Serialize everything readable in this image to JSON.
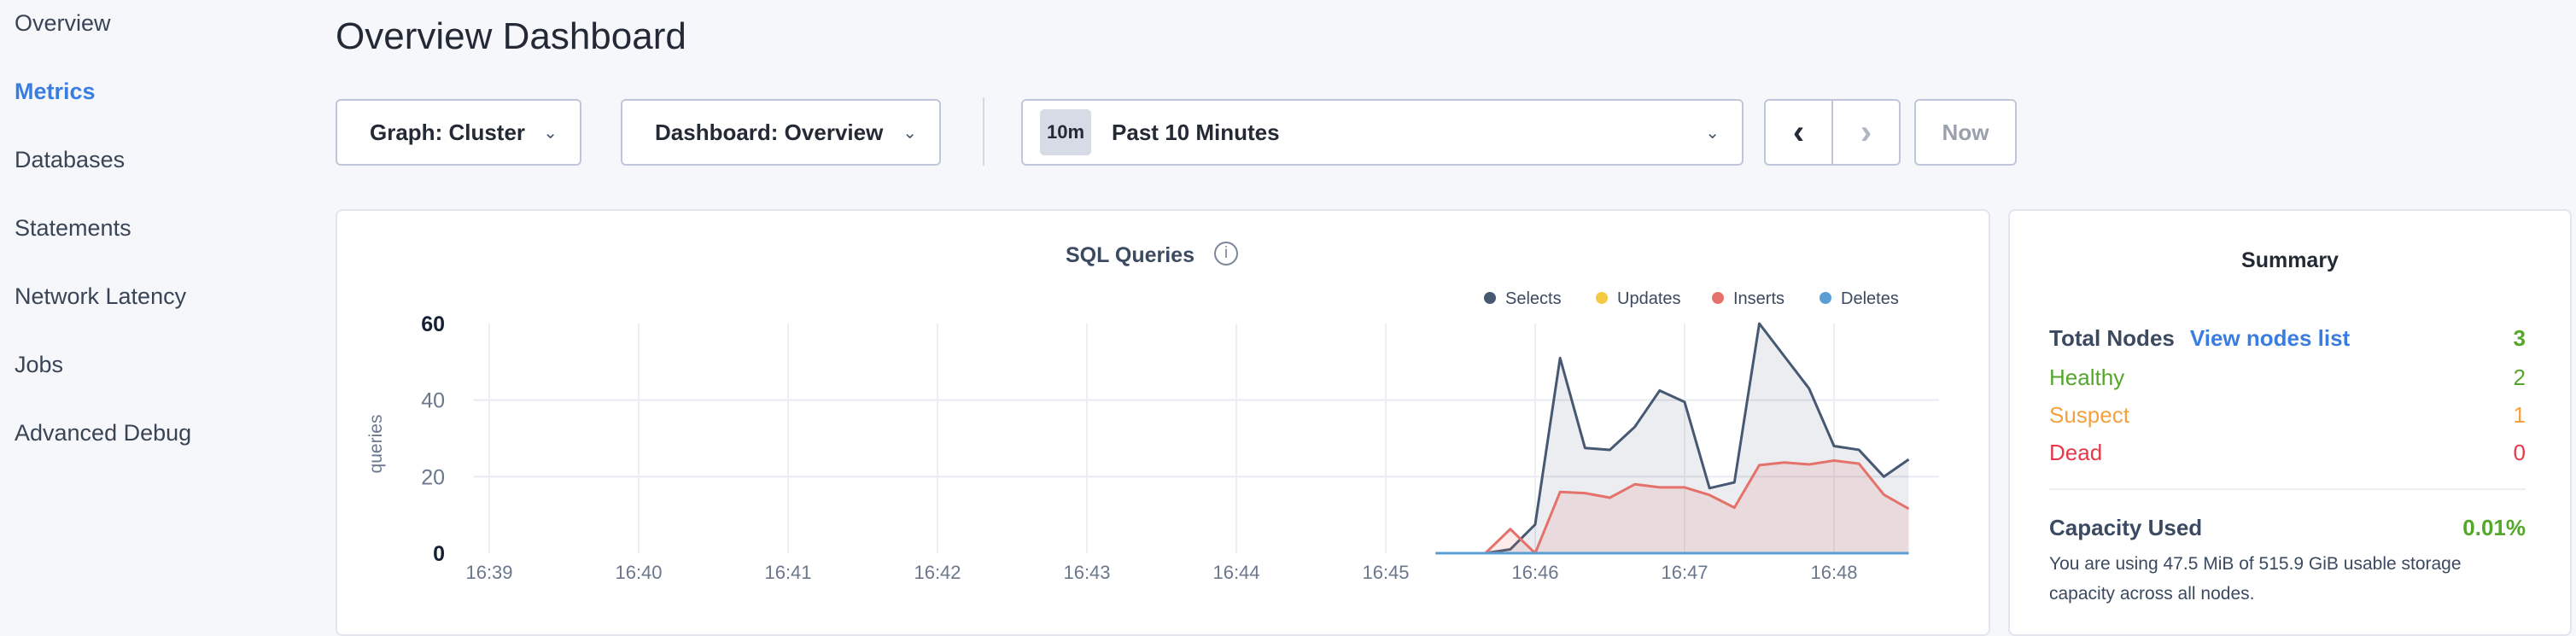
{
  "sidebar": {
    "items": [
      {
        "label": "Overview",
        "active": false
      },
      {
        "label": "Metrics",
        "active": true
      },
      {
        "label": "Databases",
        "active": false
      },
      {
        "label": "Statements",
        "active": false
      },
      {
        "label": "Network Latency",
        "active": false
      },
      {
        "label": "Jobs",
        "active": false
      },
      {
        "label": "Advanced Debug",
        "active": false
      }
    ]
  },
  "header": {
    "title": "Overview Dashboard"
  },
  "toolbar": {
    "graph_select": "Graph: Cluster",
    "dashboard_select": "Dashboard: Overview",
    "time_badge": "10m",
    "time_range": "Past 10 Minutes",
    "prev_icon": "chevron-left-icon",
    "next_icon": "chevron-right-icon",
    "now_label": "Now"
  },
  "summary": {
    "title": "Summary",
    "total_nodes_label": "Total Nodes",
    "view_nodes_link": "View nodes list",
    "total_nodes": "3",
    "healthy_label": "Healthy",
    "healthy": "2",
    "suspect_label": "Suspect",
    "suspect": "1",
    "dead_label": "Dead",
    "dead": "0",
    "capacity_label": "Capacity Used",
    "capacity_value": "0.01%",
    "capacity_text_1": "You are using 47.5 MiB of 515.9 GiB usable storage",
    "capacity_text_2": "capacity across all nodes.",
    "colors": {
      "healthy": "#54a72a",
      "suspect": "#f5a03f",
      "dead": "#e5394a",
      "link": "#3a7de1"
    }
  },
  "chart_data": {
    "type": "area",
    "title": "SQL Queries",
    "ylabel": "queries",
    "xlabel": "",
    "ylim": [
      0,
      60
    ],
    "yticks": [
      "0",
      "20",
      "40",
      "60"
    ],
    "xticks": [
      "16:39",
      "16:40",
      "16:41",
      "16:42",
      "16:43",
      "16:44",
      "16:45",
      "16:46",
      "16:47",
      "16:48"
    ],
    "grid": true,
    "legend_position": "top-right",
    "x": [
      "16:45:20",
      "16:45:30",
      "16:45:40",
      "16:45:50",
      "16:46:00",
      "16:46:10",
      "16:46:20",
      "16:46:30",
      "16:46:40",
      "16:46:50",
      "16:47:00",
      "16:47:10",
      "16:47:20",
      "16:47:30",
      "16:47:40",
      "16:47:50",
      "16:48:00",
      "16:48:10",
      "16:48:20",
      "16:48:30"
    ],
    "series": [
      {
        "name": "Selects",
        "color": "#475872",
        "values": [
          0,
          0,
          0,
          1,
          7.5,
          51,
          27.5,
          27,
          33,
          42.5,
          39.5,
          17,
          18.5,
          60,
          51.5,
          43,
          28,
          27,
          20,
          24.5
        ]
      },
      {
        "name": "Updates",
        "color": "#f5c940",
        "values": [
          0,
          0,
          0,
          0,
          0,
          0,
          0,
          0,
          0,
          0,
          0,
          0,
          0,
          0,
          0,
          0,
          0,
          0,
          0,
          0
        ]
      },
      {
        "name": "Inserts",
        "color": "#e5716b",
        "values": [
          0,
          0,
          0,
          6.3,
          0,
          16,
          15.7,
          14.5,
          18,
          17.2,
          17.2,
          15.2,
          11.9,
          23,
          23.7,
          23.2,
          24.2,
          23.4,
          15.3,
          11.6
        ]
      },
      {
        "name": "Deletes",
        "color": "#5a9fd4",
        "values": [
          0,
          0,
          0,
          0,
          0,
          0,
          0,
          0,
          0,
          0,
          0,
          0,
          0,
          0,
          0,
          0,
          0,
          0,
          0,
          0
        ]
      }
    ]
  }
}
